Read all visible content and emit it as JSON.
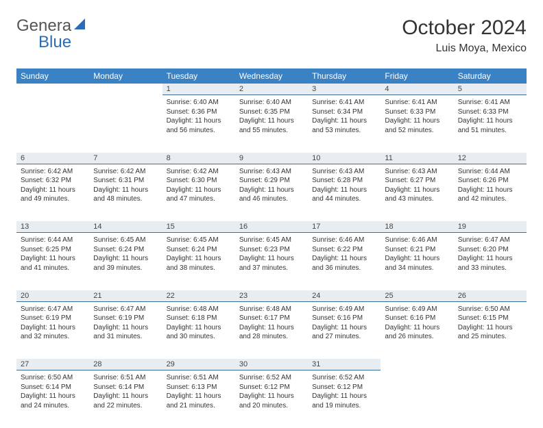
{
  "brand": {
    "word1": "Genera",
    "word2": "Blue",
    "accent_color": "#2a6db6",
    "text_color": "#555555"
  },
  "title": {
    "month": "October 2024",
    "location": "Luis Moya, Mexico"
  },
  "styling": {
    "header_bg": "#3b82c4",
    "header_text": "#ffffff",
    "daynum_bg": "#e8edf1",
    "daynum_border": "#3b6d99",
    "body_text": "#333333",
    "font_size_header": 12,
    "font_size_daynum": 11,
    "font_size_cell": 10
  },
  "weekdays": [
    "Sunday",
    "Monday",
    "Tuesday",
    "Wednesday",
    "Thursday",
    "Friday",
    "Saturday"
  ],
  "weeks": [
    {
      "nums": [
        "",
        "",
        "1",
        "2",
        "3",
        "4",
        "5"
      ],
      "cells": [
        "",
        "",
        "Sunrise: 6:40 AM\nSunset: 6:36 PM\nDaylight: 11 hours and 56 minutes.",
        "Sunrise: 6:40 AM\nSunset: 6:35 PM\nDaylight: 11 hours and 55 minutes.",
        "Sunrise: 6:41 AM\nSunset: 6:34 PM\nDaylight: 11 hours and 53 minutes.",
        "Sunrise: 6:41 AM\nSunset: 6:33 PM\nDaylight: 11 hours and 52 minutes.",
        "Sunrise: 6:41 AM\nSunset: 6:33 PM\nDaylight: 11 hours and 51 minutes."
      ]
    },
    {
      "nums": [
        "6",
        "7",
        "8",
        "9",
        "10",
        "11",
        "12"
      ],
      "cells": [
        "Sunrise: 6:42 AM\nSunset: 6:32 PM\nDaylight: 11 hours and 49 minutes.",
        "Sunrise: 6:42 AM\nSunset: 6:31 PM\nDaylight: 11 hours and 48 minutes.",
        "Sunrise: 6:42 AM\nSunset: 6:30 PM\nDaylight: 11 hours and 47 minutes.",
        "Sunrise: 6:43 AM\nSunset: 6:29 PM\nDaylight: 11 hours and 46 minutes.",
        "Sunrise: 6:43 AM\nSunset: 6:28 PM\nDaylight: 11 hours and 44 minutes.",
        "Sunrise: 6:43 AM\nSunset: 6:27 PM\nDaylight: 11 hours and 43 minutes.",
        "Sunrise: 6:44 AM\nSunset: 6:26 PM\nDaylight: 11 hours and 42 minutes."
      ]
    },
    {
      "nums": [
        "13",
        "14",
        "15",
        "16",
        "17",
        "18",
        "19"
      ],
      "cells": [
        "Sunrise: 6:44 AM\nSunset: 6:25 PM\nDaylight: 11 hours and 41 minutes.",
        "Sunrise: 6:45 AM\nSunset: 6:24 PM\nDaylight: 11 hours and 39 minutes.",
        "Sunrise: 6:45 AM\nSunset: 6:24 PM\nDaylight: 11 hours and 38 minutes.",
        "Sunrise: 6:45 AM\nSunset: 6:23 PM\nDaylight: 11 hours and 37 minutes.",
        "Sunrise: 6:46 AM\nSunset: 6:22 PM\nDaylight: 11 hours and 36 minutes.",
        "Sunrise: 6:46 AM\nSunset: 6:21 PM\nDaylight: 11 hours and 34 minutes.",
        "Sunrise: 6:47 AM\nSunset: 6:20 PM\nDaylight: 11 hours and 33 minutes."
      ]
    },
    {
      "nums": [
        "20",
        "21",
        "22",
        "23",
        "24",
        "25",
        "26"
      ],
      "cells": [
        "Sunrise: 6:47 AM\nSunset: 6:19 PM\nDaylight: 11 hours and 32 minutes.",
        "Sunrise: 6:47 AM\nSunset: 6:19 PM\nDaylight: 11 hours and 31 minutes.",
        "Sunrise: 6:48 AM\nSunset: 6:18 PM\nDaylight: 11 hours and 30 minutes.",
        "Sunrise: 6:48 AM\nSunset: 6:17 PM\nDaylight: 11 hours and 28 minutes.",
        "Sunrise: 6:49 AM\nSunset: 6:16 PM\nDaylight: 11 hours and 27 minutes.",
        "Sunrise: 6:49 AM\nSunset: 6:16 PM\nDaylight: 11 hours and 26 minutes.",
        "Sunrise: 6:50 AM\nSunset: 6:15 PM\nDaylight: 11 hours and 25 minutes."
      ]
    },
    {
      "nums": [
        "27",
        "28",
        "29",
        "30",
        "31",
        "",
        ""
      ],
      "cells": [
        "Sunrise: 6:50 AM\nSunset: 6:14 PM\nDaylight: 11 hours and 24 minutes.",
        "Sunrise: 6:51 AM\nSunset: 6:14 PM\nDaylight: 11 hours and 22 minutes.",
        "Sunrise: 6:51 AM\nSunset: 6:13 PM\nDaylight: 11 hours and 21 minutes.",
        "Sunrise: 6:52 AM\nSunset: 6:12 PM\nDaylight: 11 hours and 20 minutes.",
        "Sunrise: 6:52 AM\nSunset: 6:12 PM\nDaylight: 11 hours and 19 minutes.",
        "",
        ""
      ]
    }
  ]
}
